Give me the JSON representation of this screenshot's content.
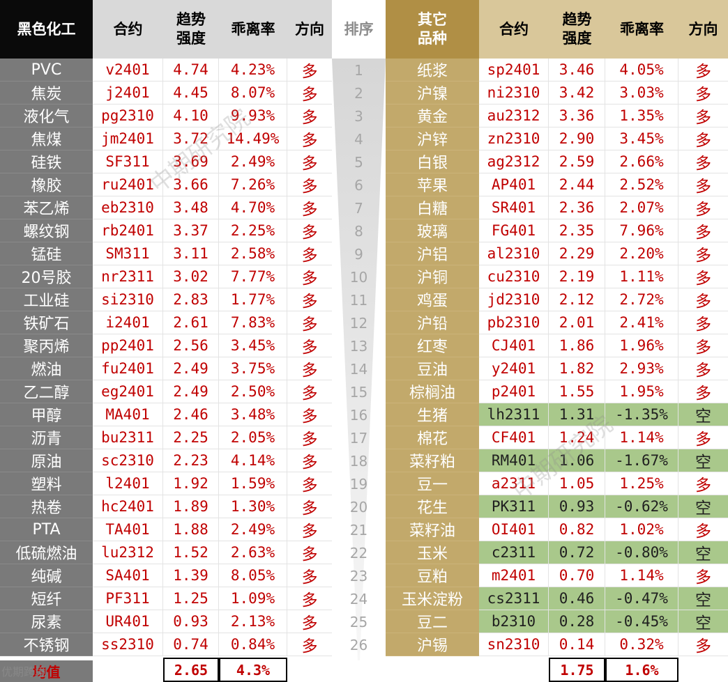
{
  "left_header": {
    "category": "黑色化工",
    "contract": "合约",
    "trend": "趋势\n强度",
    "deviation": "乖离率",
    "direction": "方向"
  },
  "rank_header": "排序",
  "right_header": {
    "category": "其它\n品种",
    "contract": "合约",
    "trend": "趋势\n强度",
    "deviation": "乖离率",
    "direction": "方向"
  },
  "left_rows": [
    {
      "name": "PVC",
      "contract": "v2401",
      "trend": "4.74",
      "dev": "4.23%",
      "dir": "多"
    },
    {
      "name": "焦炭",
      "contract": "j2401",
      "trend": "4.45",
      "dev": "8.07%",
      "dir": "多"
    },
    {
      "name": "液化气",
      "contract": "pg2310",
      "trend": "4.10",
      "dev": "9.93%",
      "dir": "多"
    },
    {
      "name": "焦煤",
      "contract": "jm2401",
      "trend": "3.72",
      "dev": "14.49%",
      "dir": "多"
    },
    {
      "name": "硅铁",
      "contract": "SF311",
      "trend": "3.69",
      "dev": "2.49%",
      "dir": "多"
    },
    {
      "name": "橡胶",
      "contract": "ru2401",
      "trend": "3.66",
      "dev": "7.26%",
      "dir": "多"
    },
    {
      "name": "苯乙烯",
      "contract": "eb2310",
      "trend": "3.48",
      "dev": "4.70%",
      "dir": "多"
    },
    {
      "name": "螺纹钢",
      "contract": "rb2401",
      "trend": "3.37",
      "dev": "2.25%",
      "dir": "多"
    },
    {
      "name": "锰硅",
      "contract": "SM311",
      "trend": "3.11",
      "dev": "2.58%",
      "dir": "多"
    },
    {
      "name": "20号胶",
      "contract": "nr2311",
      "trend": "3.02",
      "dev": "7.77%",
      "dir": "多"
    },
    {
      "name": "工业硅",
      "contract": "si2310",
      "trend": "2.83",
      "dev": "1.77%",
      "dir": "多"
    },
    {
      "name": "铁矿石",
      "contract": "i2401",
      "trend": "2.61",
      "dev": "7.83%",
      "dir": "多"
    },
    {
      "name": "聚丙烯",
      "contract": "pp2401",
      "trend": "2.56",
      "dev": "3.45%",
      "dir": "多"
    },
    {
      "name": "燃油",
      "contract": "fu2401",
      "trend": "2.49",
      "dev": "3.75%",
      "dir": "多"
    },
    {
      "name": "乙二醇",
      "contract": "eg2401",
      "trend": "2.49",
      "dev": "2.50%",
      "dir": "多"
    },
    {
      "name": "甲醇",
      "contract": "MA401",
      "trend": "2.46",
      "dev": "3.48%",
      "dir": "多"
    },
    {
      "name": "沥青",
      "contract": "bu2311",
      "trend": "2.25",
      "dev": "2.05%",
      "dir": "多"
    },
    {
      "name": "原油",
      "contract": "sc2310",
      "trend": "2.23",
      "dev": "4.14%",
      "dir": "多"
    },
    {
      "name": "塑料",
      "contract": "l2401",
      "trend": "1.92",
      "dev": "1.59%",
      "dir": "多"
    },
    {
      "name": "热卷",
      "contract": "hc2401",
      "trend": "1.89",
      "dev": "1.30%",
      "dir": "多"
    },
    {
      "name": "PTA",
      "contract": "TA401",
      "trend": "1.88",
      "dev": "2.49%",
      "dir": "多"
    },
    {
      "name": "低硫燃油",
      "contract": "lu2312",
      "trend": "1.52",
      "dev": "2.63%",
      "dir": "多"
    },
    {
      "name": "纯碱",
      "contract": "SA401",
      "trend": "1.39",
      "dev": "8.05%",
      "dir": "多"
    },
    {
      "name": "短纤",
      "contract": "PF311",
      "trend": "1.25",
      "dev": "1.09%",
      "dir": "多"
    },
    {
      "name": "尿素",
      "contract": "UR401",
      "trend": "0.93",
      "dev": "2.13%",
      "dir": "多"
    },
    {
      "name": "不锈钢",
      "contract": "ss2310",
      "trend": "0.74",
      "dev": "0.84%",
      "dir": "多"
    }
  ],
  "ranks": [
    "1",
    "2",
    "3",
    "4",
    "5",
    "6",
    "7",
    "8",
    "9",
    "10",
    "11",
    "12",
    "13",
    "14",
    "15",
    "16",
    "17",
    "18",
    "19",
    "20",
    "21",
    "22",
    "23",
    "24",
    "25",
    "26"
  ],
  "right_rows": [
    {
      "name": "纸浆",
      "contract": "sp2401",
      "trend": "3.46",
      "dev": "4.05%",
      "dir": "多",
      "short": false
    },
    {
      "name": "沪镍",
      "contract": "ni2310",
      "trend": "3.42",
      "dev": "3.03%",
      "dir": "多",
      "short": false
    },
    {
      "name": "黄金",
      "contract": "au2312",
      "trend": "3.36",
      "dev": "1.35%",
      "dir": "多",
      "short": false
    },
    {
      "name": "沪锌",
      "contract": "zn2310",
      "trend": "2.90",
      "dev": "3.45%",
      "dir": "多",
      "short": false
    },
    {
      "name": "白银",
      "contract": "ag2312",
      "trend": "2.59",
      "dev": "2.66%",
      "dir": "多",
      "short": false
    },
    {
      "name": "苹果",
      "contract": "AP401",
      "trend": "2.44",
      "dev": "2.52%",
      "dir": "多",
      "short": false
    },
    {
      "name": "白糖",
      "contract": "SR401",
      "trend": "2.36",
      "dev": "2.07%",
      "dir": "多",
      "short": false
    },
    {
      "name": "玻璃",
      "contract": "FG401",
      "trend": "2.35",
      "dev": "7.96%",
      "dir": "多",
      "short": false
    },
    {
      "name": "沪铝",
      "contract": "al2310",
      "trend": "2.29",
      "dev": "2.20%",
      "dir": "多",
      "short": false
    },
    {
      "name": "沪铜",
      "contract": "cu2310",
      "trend": "2.19",
      "dev": "1.11%",
      "dir": "多",
      "short": false
    },
    {
      "name": "鸡蛋",
      "contract": "jd2310",
      "trend": "2.12",
      "dev": "2.72%",
      "dir": "多",
      "short": false
    },
    {
      "name": "沪铅",
      "contract": "pb2310",
      "trend": "2.01",
      "dev": "2.41%",
      "dir": "多",
      "short": false
    },
    {
      "name": "红枣",
      "contract": "CJ401",
      "trend": "1.86",
      "dev": "1.96%",
      "dir": "多",
      "short": false
    },
    {
      "name": "豆油",
      "contract": "y2401",
      "trend": "1.82",
      "dev": "2.93%",
      "dir": "多",
      "short": false
    },
    {
      "name": "棕榈油",
      "contract": "p2401",
      "trend": "1.55",
      "dev": "1.95%",
      "dir": "多",
      "short": false
    },
    {
      "name": "生猪",
      "contract": "lh2311",
      "trend": "1.31",
      "dev": "-1.35%",
      "dir": "空",
      "short": true
    },
    {
      "name": "棉花",
      "contract": "CF401",
      "trend": "1.24",
      "dev": "1.14%",
      "dir": "多",
      "short": false
    },
    {
      "name": "菜籽粕",
      "contract": "RM401",
      "trend": "1.06",
      "dev": "-1.67%",
      "dir": "空",
      "short": true
    },
    {
      "name": "豆一",
      "contract": "a2311",
      "trend": "1.05",
      "dev": "1.25%",
      "dir": "多",
      "short": false
    },
    {
      "name": "花生",
      "contract": "PK311",
      "trend": "0.93",
      "dev": "-0.62%",
      "dir": "空",
      "short": true
    },
    {
      "name": "菜籽油",
      "contract": "OI401",
      "trend": "0.82",
      "dev": "1.02%",
      "dir": "多",
      "short": false
    },
    {
      "name": "玉米",
      "contract": "c2311",
      "trend": "0.72",
      "dev": "-0.80%",
      "dir": "空",
      "short": true
    },
    {
      "name": "豆粕",
      "contract": "m2401",
      "trend": "0.70",
      "dev": "1.14%",
      "dir": "多",
      "short": false
    },
    {
      "name": "玉米淀粉",
      "contract": "cs2311",
      "trend": "0.46",
      "dev": "-0.47%",
      "dir": "空",
      "short": true
    },
    {
      "name": "豆二",
      "contract": "b2310",
      "trend": "0.28",
      "dev": "-0.45%",
      "dir": "空",
      "short": true
    },
    {
      "name": "沪锡",
      "contract": "sn2310",
      "trend": "0.14",
      "dev": "0.32%",
      "dir": "多",
      "short": false
    }
  ],
  "footer": {
    "label": "均值",
    "left_trend_avg": "2.65",
    "left_dev_avg": "4.3%",
    "right_trend_avg": "1.75",
    "right_dev_avg": "1.6%"
  },
  "watermark": "中期研究院",
  "wechat_mark": "优期跨境",
  "colors": {
    "left_category_bg": "#7a7a7a",
    "right_category_bg": "#c2a96b",
    "value_red": "#c00000",
    "short_green": "#a9c88b"
  }
}
